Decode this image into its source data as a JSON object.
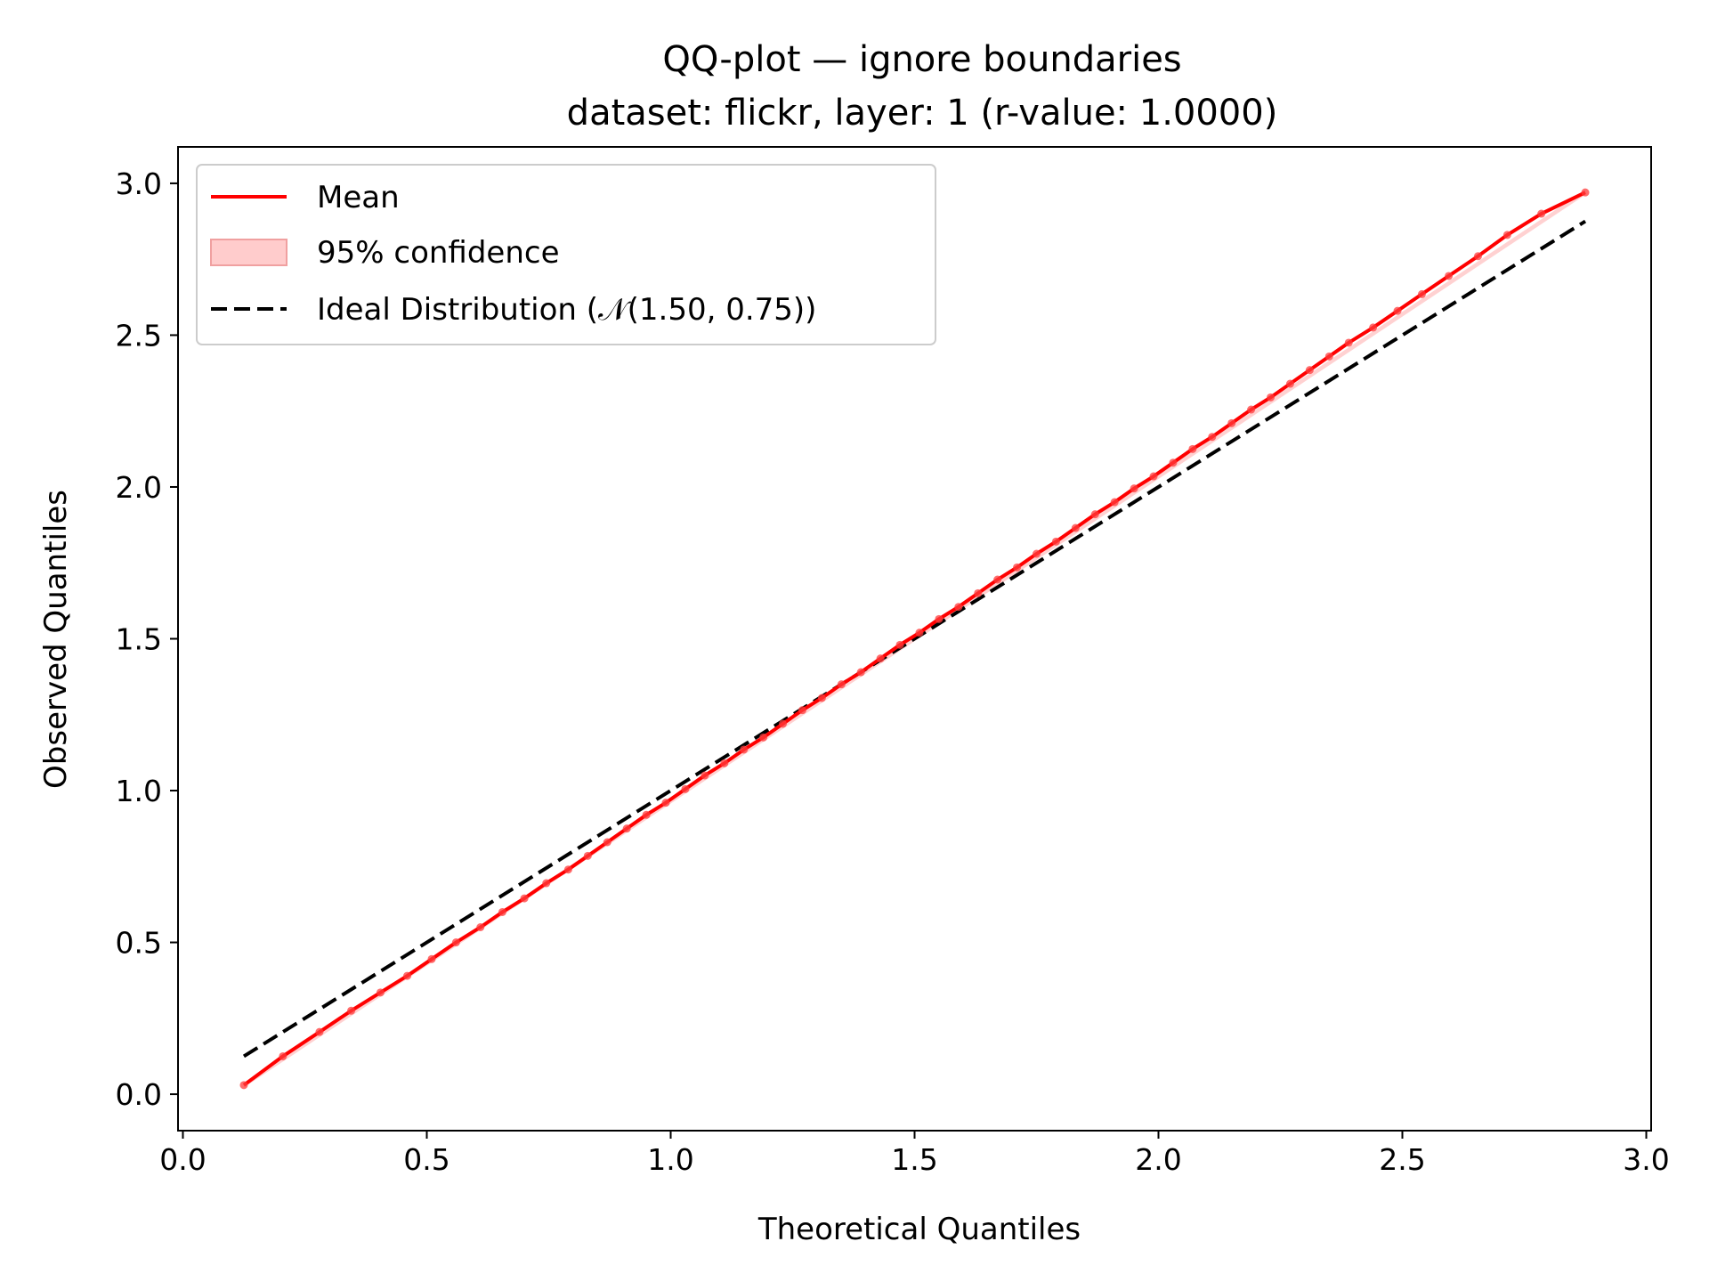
{
  "chart_data": {
    "type": "line",
    "title": "QQ-plot — ignore boundaries",
    "subtitle": "dataset: flickr, layer: 1 (r-value: 1.0000)",
    "xlabel": "Theoretical Quantiles",
    "ylabel": "Observed Quantiles",
    "xlim": [
      -0.01,
      3.01
    ],
    "ylim": [
      -0.12,
      3.12
    ],
    "xticks": [
      0.0,
      0.5,
      1.0,
      1.5,
      2.0,
      2.5,
      3.0
    ],
    "yticks": [
      0.0,
      0.5,
      1.0,
      1.5,
      2.0,
      2.5,
      3.0
    ],
    "xtick_labels": [
      "0.0",
      "0.5",
      "1.0",
      "1.5",
      "2.0",
      "2.5",
      "3.0"
    ],
    "ytick_labels": [
      "0.0",
      "0.5",
      "1.0",
      "1.5",
      "2.0",
      "2.5",
      "3.0"
    ],
    "grid": false,
    "legend_position": "top-left",
    "legend": [
      {
        "label": "Mean",
        "style": "line",
        "color": "#ff0000"
      },
      {
        "label": "95% confidence",
        "style": "patch",
        "color": "#ffcccc"
      },
      {
        "label": "Ideal Distribution (𝒩(1.50, 0.75))",
        "style": "dashed",
        "color": "#000000"
      }
    ],
    "series": [
      {
        "name": "Mean",
        "color": "#ff0000",
        "x": [
          0.125,
          0.205,
          0.28,
          0.345,
          0.405,
          0.46,
          0.51,
          0.56,
          0.61,
          0.655,
          0.7,
          0.745,
          0.79,
          0.83,
          0.87,
          0.91,
          0.95,
          0.99,
          1.03,
          1.07,
          1.11,
          1.15,
          1.19,
          1.23,
          1.27,
          1.31,
          1.35,
          1.39,
          1.43,
          1.47,
          1.51,
          1.55,
          1.59,
          1.63,
          1.67,
          1.71,
          1.75,
          1.79,
          1.83,
          1.87,
          1.91,
          1.95,
          1.99,
          2.03,
          2.07,
          2.11,
          2.15,
          2.19,
          2.23,
          2.27,
          2.31,
          2.35,
          2.39,
          2.44,
          2.49,
          2.54,
          2.595,
          2.655,
          2.715,
          2.785,
          2.875
        ],
        "y": [
          0.03,
          0.125,
          0.205,
          0.275,
          0.335,
          0.39,
          0.445,
          0.5,
          0.55,
          0.6,
          0.645,
          0.695,
          0.74,
          0.785,
          0.83,
          0.875,
          0.92,
          0.96,
          1.005,
          1.05,
          1.09,
          1.135,
          1.175,
          1.22,
          1.265,
          1.305,
          1.35,
          1.39,
          1.435,
          1.48,
          1.52,
          1.565,
          1.605,
          1.65,
          1.695,
          1.735,
          1.78,
          1.82,
          1.865,
          1.91,
          1.95,
          1.995,
          2.035,
          2.08,
          2.125,
          2.165,
          2.21,
          2.255,
          2.295,
          2.34,
          2.385,
          2.43,
          2.475,
          2.525,
          2.58,
          2.635,
          2.695,
          2.76,
          2.83,
          2.9,
          2.97
        ]
      },
      {
        "name": "95% confidence",
        "color": "#ffcccc",
        "x": [
          0.125,
          2.875
        ],
        "y_lower": [
          0.022,
          2.962
        ],
        "y_upper": [
          0.038,
          2.978
        ]
      },
      {
        "name": "Ideal Distribution (𝒩(1.50, 0.75))",
        "color": "#000000",
        "dashed": true,
        "x": [
          0.125,
          2.875
        ],
        "y": [
          0.125,
          2.875
        ]
      }
    ]
  }
}
